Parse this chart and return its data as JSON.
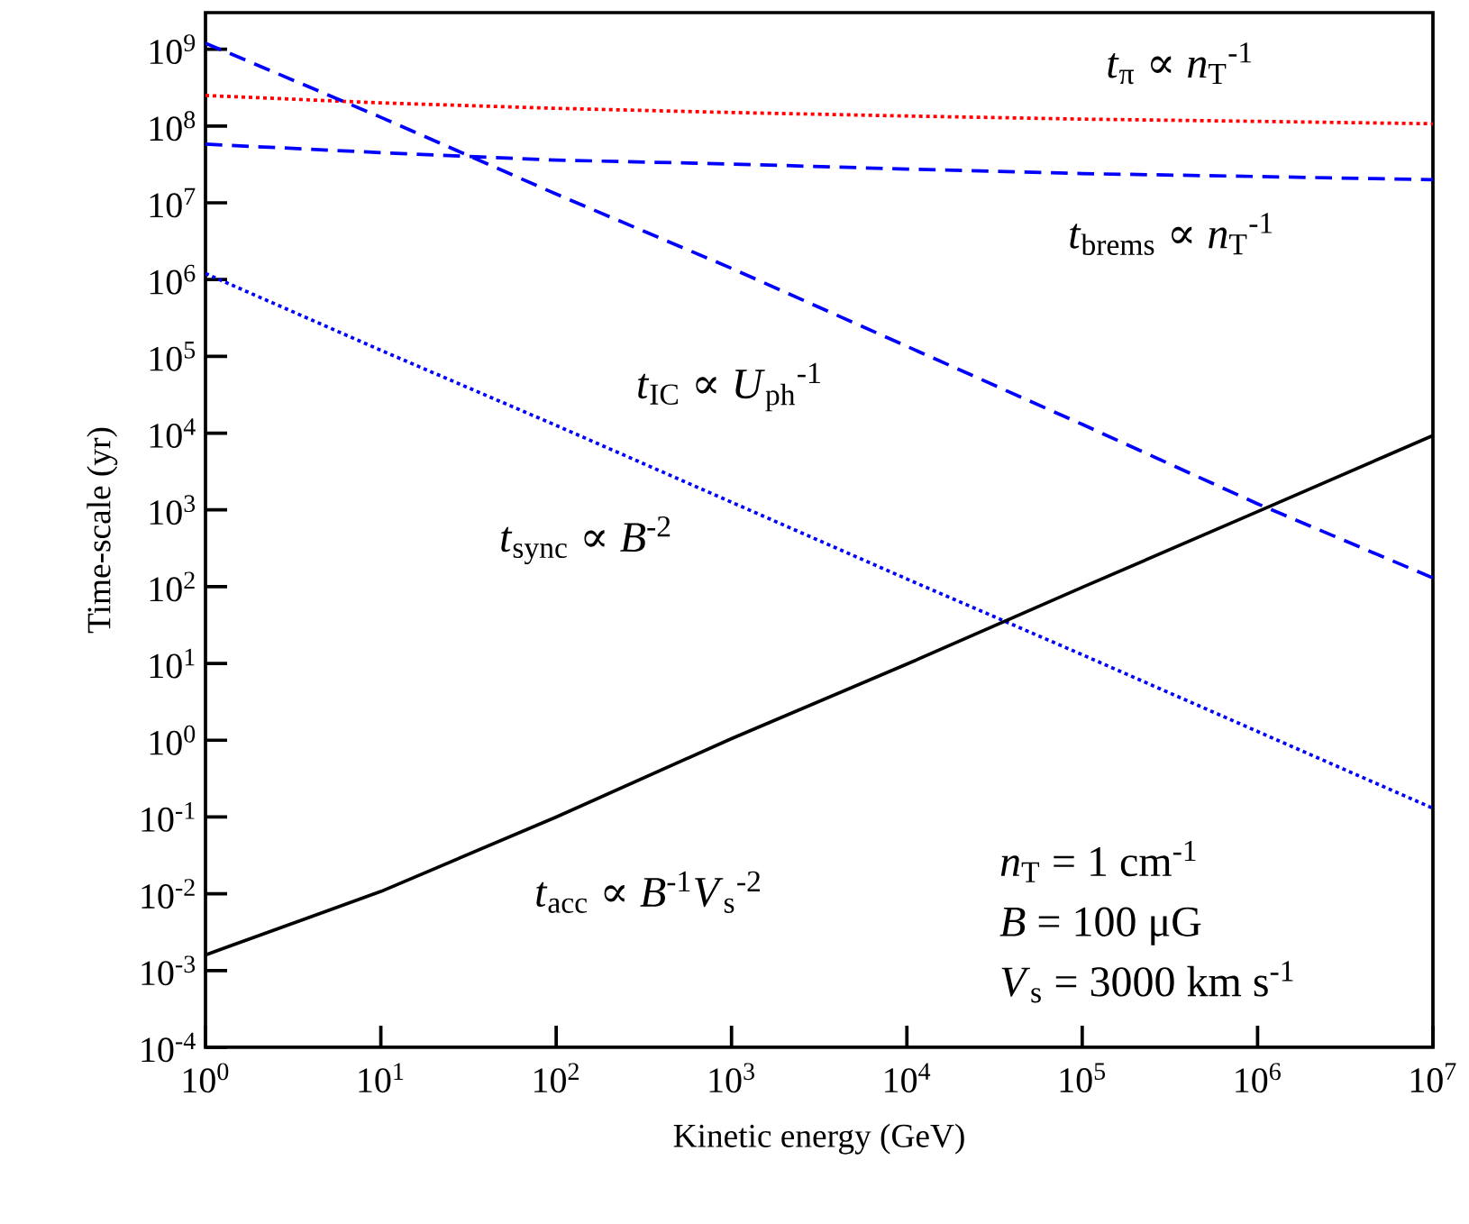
{
  "chart_data": {
    "type": "line",
    "xlabel": "Kinetic energy (GeV)",
    "ylabel": "Time-scale (yr)",
    "log": "xy",
    "grid": false,
    "marker": "none",
    "x": [
      1,
      10,
      100,
      1000,
      10000,
      100000,
      1000000,
      10000000
    ],
    "series": [
      {
        "color": "#ff0000",
        "line_style": "dotted",
        "values": [
          250000000.0,
          200000000.0,
          170000000.0,
          150000000.0,
          135000000.0,
          123000000.0,
          115000000.0,
          107000000.0
        ]
      },
      {
        "color": "#0000ff",
        "line_style": "dashed",
        "values": [
          58000000.0,
          45000000.0,
          36000000.0,
          32000000.0,
          27500000.0,
          24000000.0,
          22000000.0,
          20000000.0
        ]
      },
      {
        "color": "#0000ff",
        "line_style": "dashed",
        "values": [
          1200000000.0,
          130000000.0,
          13000000.0,
          1400000.0,
          135000.0,
          13000.0,
          1200.0,
          130.0
        ]
      },
      {
        "color": "#0000ff",
        "line_style": "dotted",
        "values": [
          1200000.0,
          120000.0,
          12600.0,
          1260.0,
          126.0,
          13,
          1.3,
          0.13
        ]
      },
      {
        "color": "#000000",
        "line_style": "solid",
        "values": [
          0.0016,
          0.0107,
          0.1,
          1.05,
          9.8,
          98,
          950,
          9300
        ]
      }
    ],
    "xlim": [
      1,
      10000000
    ],
    "ylim": [
      0.0001,
      3000000000.0
    ],
    "xticks": [
      {
        "value": 1,
        "label": "10$^{0}$"
      },
      {
        "value": 10,
        "label": "10$^{1}$"
      },
      {
        "value": 100,
        "label": "10$^{2}$"
      },
      {
        "value": 1000,
        "label": "10$^{3}$"
      },
      {
        "value": 10000,
        "label": "10$^{4}$"
      },
      {
        "value": 100000,
        "label": "10$^{5}$"
      },
      {
        "value": 1000000,
        "label": "10$^{6}$"
      },
      {
        "value": 10000000,
        "label": "10$^{7}$"
      }
    ],
    "yticks": [
      {
        "value": 0.0001,
        "label": "10$^{-4}$"
      },
      {
        "value": 0.001,
        "label": "10$^{-3}$"
      },
      {
        "value": 0.01,
        "label": "10$^{-2}$"
      },
      {
        "value": 0.1,
        "label": "10$^{-1}$"
      },
      {
        "value": 1,
        "label": "10$^{0}$"
      },
      {
        "value": 10,
        "label": "10$^{1}$"
      },
      {
        "value": 100,
        "label": "10$^{2}$"
      },
      {
        "value": 1000,
        "label": "10$^{3}$"
      },
      {
        "value": 10000,
        "label": "10$^{4}$"
      },
      {
        "value": 100000,
        "label": "10$^{5}$"
      },
      {
        "value": 1000000,
        "label": "10$^{6}$"
      },
      {
        "value": 10000000,
        "label": "10$^{7}$"
      },
      {
        "value": 100000000,
        "label": "10$^{8}$"
      },
      {
        "value": 1000000000,
        "label": "10$^{9}$"
      }
    ],
    "annotations": [
      "*t*$_{π}$ ∝ *n*$_{T}$$^{-1}$",
      "*t*$_{brems}$ ∝ *n*$_{T}$$^{-1}$",
      "*t*$_{IC}$ ∝ *U*$_{ph}$$^{-1}$",
      "*t*$_{sync}$ ∝ *B*$^{-2}$",
      "*t*$_{acc}$ ∝ *B*$^{-1}$*V*$_{s}$$^{-2}$",
      "*n*$_{T}$ = 1 cm$^{-1}$",
      "*B* = 100 μG",
      "*V*$_{s}$ = 3000 km s$^{-1}$"
    ]
  }
}
